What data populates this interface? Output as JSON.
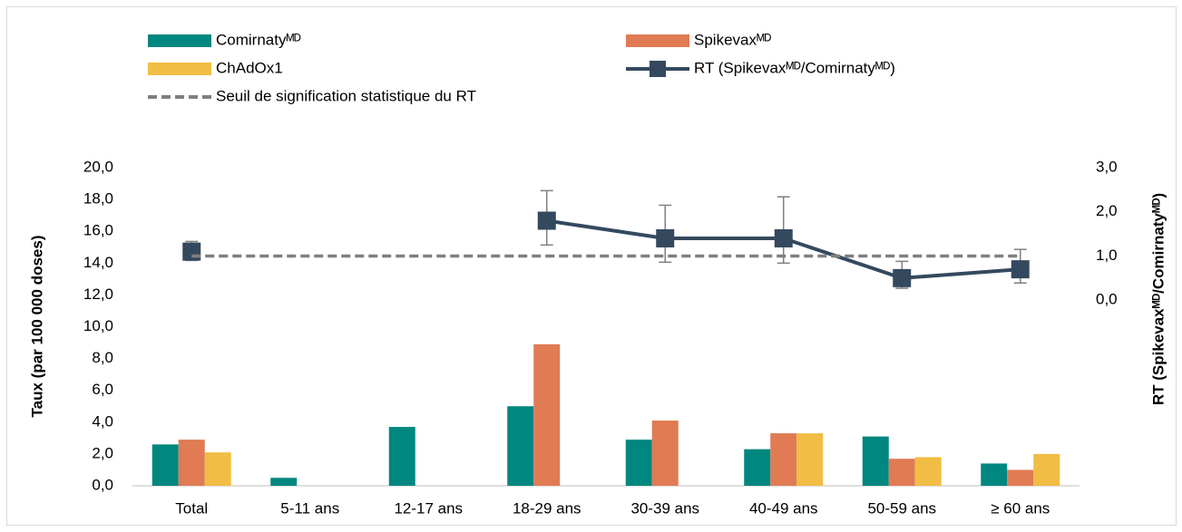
{
  "chart_data": {
    "type": "bar",
    "categories": [
      "Total",
      "5-11 ans",
      "12-17 ans",
      "18-29 ans",
      "30-39 ans",
      "40-49 ans",
      "50-59 ans",
      "≥ 60 ans"
    ],
    "y_label": "Taux (par 100 000 doses)",
    "y2_label": "RT (Spikevaxᴹᴰ/Comirnatyᴹᴰ)",
    "ylim": [
      0,
      20
    ],
    "yticks": [
      {
        "value": 0,
        "label": "0,0"
      },
      {
        "value": 2,
        "label": "2,0"
      },
      {
        "value": 4,
        "label": "4,0"
      },
      {
        "value": 6,
        "label": "6,0"
      },
      {
        "value": 8,
        "label": "8,0"
      },
      {
        "value": 10,
        "label": "10,0"
      },
      {
        "value": 12,
        "label": "12,0"
      },
      {
        "value": 14,
        "label": "14,0"
      },
      {
        "value": 16,
        "label": "16,0"
      },
      {
        "value": 18,
        "label": "18,0"
      },
      {
        "value": 20,
        "label": "20,0"
      }
    ],
    "y2lim": [
      -4.2,
      3
    ],
    "y2ticks": [
      {
        "value": 0,
        "label": "0,0"
      },
      {
        "value": 1,
        "label": "1,0"
      },
      {
        "value": 2,
        "label": "2,0"
      },
      {
        "value": 3,
        "label": "3,0"
      }
    ],
    "series": [
      {
        "name": "Comirnatyᴹᴰ",
        "color": "#00877f",
        "values": [
          2.6,
          0.5,
          3.7,
          5.0,
          2.9,
          2.3,
          3.1,
          1.4
        ]
      },
      {
        "name": "Spikevaxᴹᴰ",
        "color": "#e07b54",
        "values": [
          2.9,
          null,
          null,
          8.9,
          4.1,
          3.3,
          1.7,
          1.0
        ]
      },
      {
        "name": "ChAdOx1",
        "color": "#f1bd45",
        "values": [
          2.1,
          null,
          null,
          null,
          null,
          3.3,
          1.8,
          2.0
        ]
      },
      {
        "name": "RT (Spikevaxᴹᴰ/Comirnatyᴹᴰ)",
        "type": "line",
        "axis": "y2",
        "color": "#34495e",
        "values": [
          1.1,
          null,
          null,
          1.8,
          1.4,
          1.4,
          0.5,
          0.7
        ],
        "ci_low": [
          0.9,
          null,
          null,
          1.25,
          0.86,
          0.84,
          0.27,
          0.39
        ],
        "ci_high": [
          1.33,
          null,
          null,
          2.48,
          2.15,
          2.34,
          0.88,
          1.15
        ]
      },
      {
        "name": "Seuil de signification statistique du RT",
        "type": "line",
        "dashed": true,
        "axis": "y2",
        "color": "#7f7f7f",
        "values": [
          1,
          1,
          1,
          1,
          1,
          1,
          1,
          1
        ]
      }
    ]
  }
}
